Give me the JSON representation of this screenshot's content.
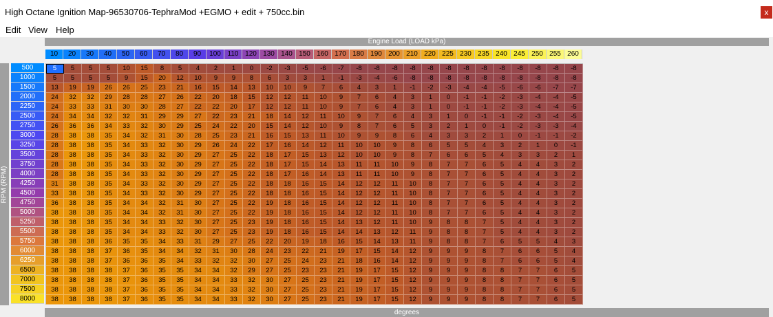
{
  "window": {
    "title": "High Octane Ignition Map-96530706-TephraMod +EGMO + edit + 750cc.bin",
    "close_glyph": "x"
  },
  "menu": [
    "Edit",
    "View",
    "Help"
  ],
  "x_axis_label": "Engine Load (LOAD kPa)",
  "y_axis_label": "RPM (RPM)",
  "value_unit_label": "degrees",
  "load_axis": [
    "10",
    "20",
    "30",
    "40",
    "50",
    "60",
    "70",
    "80",
    "90",
    "100",
    "110",
    "120",
    "130",
    "140",
    "150",
    "160",
    "170",
    "180",
    "190",
    "200",
    "210",
    "220",
    "225",
    "230",
    "235",
    "240",
    "245",
    "250",
    "255",
    "260"
  ],
  "rpm_axis": [
    "500",
    "1000",
    "1500",
    "2000",
    "2250",
    "2500",
    "2750",
    "3000",
    "3250",
    "3500",
    "3750",
    "4000",
    "4250",
    "4500",
    "4750",
    "5000",
    "5250",
    "5500",
    "5750",
    "6000",
    "6250",
    "6500",
    "7000",
    "7500",
    "8000"
  ],
  "selected_cell": {
    "row": 0,
    "col": 0
  },
  "values": [
    [
      5,
      5,
      5,
      5,
      10,
      15,
      8,
      5,
      4,
      2,
      1,
      0,
      -2,
      -3,
      -5,
      -6,
      -7,
      -8,
      -8,
      -8,
      -8,
      -8,
      -8,
      -8,
      -8,
      -8,
      -8,
      -8,
      -8,
      -8
    ],
    [
      5,
      5,
      5,
      5,
      9,
      15,
      20,
      12,
      10,
      9,
      9,
      8,
      6,
      3,
      3,
      1,
      -1,
      -3,
      -4,
      -6,
      -8,
      -8,
      -8,
      -8,
      -8,
      -8,
      -8,
      -8,
      -8,
      -8
    ],
    [
      13,
      19,
      19,
      26,
      26,
      25,
      23,
      21,
      16,
      15,
      14,
      13,
      10,
      10,
      9,
      7,
      6,
      4,
      3,
      1,
      -1,
      -2,
      -3,
      -4,
      -4,
      -5,
      -6,
      -6,
      -7,
      -7
    ],
    [
      24,
      32,
      32,
      29,
      28,
      28,
      27,
      26,
      22,
      20,
      18,
      15,
      12,
      12,
      11,
      10,
      9,
      7,
      6,
      4,
      3,
      1,
      0,
      -1,
      -1,
      -2,
      -3,
      -4,
      -4,
      -5
    ],
    [
      24,
      33,
      33,
      31,
      30,
      30,
      28,
      27,
      22,
      22,
      20,
      17,
      12,
      12,
      11,
      10,
      9,
      7,
      6,
      4,
      3,
      1,
      0,
      -1,
      -1,
      -2,
      -3,
      -4,
      -4,
      -5
    ],
    [
      24,
      34,
      34,
      32,
      32,
      31,
      29,
      29,
      27,
      22,
      23,
      21,
      18,
      14,
      12,
      11,
      10,
      9,
      7,
      6,
      4,
      3,
      1,
      0,
      -1,
      -1,
      -2,
      -3,
      -4,
      -5
    ],
    [
      26,
      36,
      36,
      34,
      33,
      32,
      30,
      29,
      25,
      24,
      22,
      20,
      15,
      14,
      12,
      10,
      9,
      8,
      7,
      6,
      5,
      3,
      2,
      1,
      0,
      -1,
      -2,
      -3,
      -3,
      -4
    ],
    [
      28,
      38,
      38,
      35,
      34,
      32,
      31,
      30,
      28,
      25,
      23,
      21,
      16,
      15,
      13,
      11,
      10,
      9,
      9,
      8,
      6,
      4,
      3,
      3,
      2,
      1,
      0,
      -1,
      -1,
      -2
    ],
    [
      28,
      38,
      38,
      35,
      34,
      33,
      32,
      30,
      29,
      26,
      24,
      22,
      17,
      16,
      14,
      12,
      11,
      10,
      10,
      9,
      8,
      6,
      5,
      5,
      4,
      3,
      2,
      1,
      0,
      -1
    ],
    [
      28,
      38,
      38,
      35,
      34,
      33,
      32,
      30,
      29,
      27,
      25,
      22,
      18,
      17,
      15,
      13,
      12,
      10,
      10,
      9,
      8,
      7,
      6,
      6,
      5,
      4,
      3,
      3,
      2,
      1
    ],
    [
      28,
      38,
      38,
      35,
      34,
      33,
      32,
      30,
      29,
      27,
      25,
      22,
      18,
      17,
      15,
      14,
      13,
      11,
      11,
      10,
      9,
      8,
      7,
      7,
      6,
      5,
      4,
      4,
      3,
      2
    ],
    [
      28,
      38,
      38,
      35,
      34,
      33,
      32,
      30,
      29,
      27,
      25,
      22,
      18,
      17,
      16,
      14,
      13,
      11,
      11,
      10,
      9,
      8,
      7,
      7,
      6,
      5,
      4,
      4,
      3,
      2
    ],
    [
      31,
      38,
      38,
      35,
      34,
      33,
      32,
      30,
      29,
      27,
      25,
      22,
      18,
      18,
      16,
      15,
      14,
      12,
      12,
      11,
      10,
      8,
      7,
      7,
      6,
      5,
      4,
      4,
      3,
      2
    ],
    [
      33,
      38,
      38,
      35,
      34,
      33,
      32,
      30,
      29,
      27,
      25,
      22,
      18,
      18,
      16,
      15,
      14,
      12,
      12,
      11,
      10,
      8,
      7,
      7,
      6,
      5,
      4,
      4,
      3,
      2
    ],
    [
      36,
      38,
      38,
      35,
      34,
      34,
      32,
      31,
      30,
      27,
      25,
      22,
      19,
      18,
      16,
      15,
      14,
      12,
      12,
      11,
      10,
      8,
      7,
      7,
      6,
      5,
      4,
      4,
      3,
      2
    ],
    [
      38,
      38,
      38,
      35,
      34,
      34,
      32,
      31,
      30,
      27,
      25,
      22,
      19,
      18,
      16,
      15,
      14,
      12,
      12,
      11,
      10,
      8,
      7,
      7,
      6,
      5,
      4,
      4,
      3,
      2
    ],
    [
      38,
      38,
      38,
      35,
      34,
      34,
      33,
      32,
      30,
      27,
      25,
      23,
      19,
      18,
      16,
      15,
      14,
      13,
      12,
      11,
      10,
      9,
      8,
      8,
      7,
      5,
      4,
      4,
      3,
      2
    ],
    [
      38,
      38,
      38,
      35,
      34,
      34,
      33,
      32,
      30,
      27,
      25,
      23,
      19,
      18,
      16,
      15,
      14,
      14,
      13,
      12,
      11,
      9,
      8,
      8,
      7,
      5,
      4,
      4,
      3,
      2
    ],
    [
      38,
      38,
      38,
      36,
      35,
      35,
      34,
      33,
      31,
      29,
      27,
      25,
      22,
      20,
      19,
      18,
      16,
      15,
      14,
      13,
      11,
      9,
      8,
      8,
      7,
      6,
      5,
      5,
      4,
      3
    ],
    [
      38,
      38,
      38,
      37,
      36,
      35,
      34,
      34,
      32,
      31,
      30,
      28,
      24,
      23,
      22,
      21,
      19,
      17,
      15,
      14,
      12,
      9,
      9,
      9,
      8,
      7,
      6,
      6,
      5,
      4
    ],
    [
      38,
      38,
      38,
      37,
      36,
      36,
      35,
      34,
      33,
      32,
      32,
      30,
      27,
      25,
      24,
      23,
      21,
      18,
      16,
      14,
      12,
      9,
      9,
      9,
      8,
      7,
      6,
      6,
      5,
      4
    ],
    [
      38,
      38,
      38,
      38,
      37,
      36,
      35,
      35,
      34,
      34,
      32,
      29,
      27,
      25,
      23,
      23,
      21,
      19,
      17,
      15,
      12,
      9,
      9,
      9,
      8,
      8,
      7,
      7,
      6,
      5
    ],
    [
      38,
      38,
      38,
      38,
      37,
      36,
      35,
      35,
      34,
      34,
      33,
      32,
      30,
      27,
      25,
      23,
      21,
      19,
      17,
      15,
      12,
      9,
      9,
      9,
      8,
      8,
      7,
      7,
      6,
      5
    ],
    [
      38,
      38,
      38,
      38,
      37,
      36,
      35,
      35,
      34,
      34,
      33,
      32,
      30,
      27,
      25,
      23,
      21,
      19,
      17,
      15,
      12,
      9,
      9,
      9,
      8,
      8,
      7,
      7,
      6,
      5
    ],
    [
      38,
      38,
      38,
      38,
      37,
      36,
      35,
      35,
      34,
      34,
      33,
      32,
      30,
      27,
      25,
      23,
      21,
      19,
      17,
      15,
      12,
      9,
      9,
      9,
      8,
      8,
      7,
      7,
      6,
      5
    ]
  ]
}
